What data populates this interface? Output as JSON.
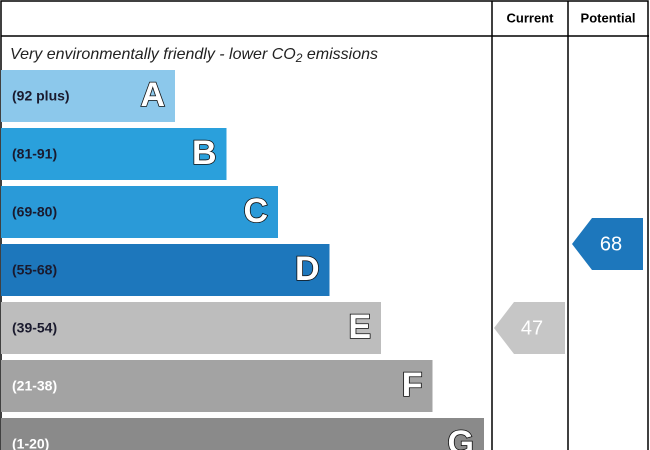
{
  "header": {
    "columns": [
      "Current",
      "Potential"
    ]
  },
  "subtitle": {
    "text": "Very environmentally friendly - lower CO",
    "subscript": "2",
    "after": " emissions"
  },
  "bands": [
    {
      "range": "(92 plus)",
      "letter": "A",
      "color": "#8cc8eb",
      "text_color": "#1a1a2e"
    },
    {
      "range": "(81-91)",
      "letter": "B",
      "color": "#2aa0dc",
      "text_color": "#1a1a2e"
    },
    {
      "range": "(69-80)",
      "letter": "C",
      "color": "#2a9ad8",
      "text_color": "#1a1a2e"
    },
    {
      "range": "(55-68)",
      "letter": "D",
      "color": "#1d77bc",
      "text_color": "#1a1a2e"
    },
    {
      "range": "(39-54)",
      "letter": "E",
      "color": "#bdbdbd",
      "text_color": "#1a1a2e"
    },
    {
      "range": "(21-38)",
      "letter": "F",
      "color": "#a3a3a3",
      "text_color": "#ffffff"
    },
    {
      "range": "(1-20)",
      "letter": "G",
      "color": "#8a8a8a",
      "text_color": "#ffffff"
    }
  ],
  "current": {
    "value": "47",
    "color": "#c6c6c6"
  },
  "potential": {
    "value": "68",
    "color": "#1d77bc"
  }
}
